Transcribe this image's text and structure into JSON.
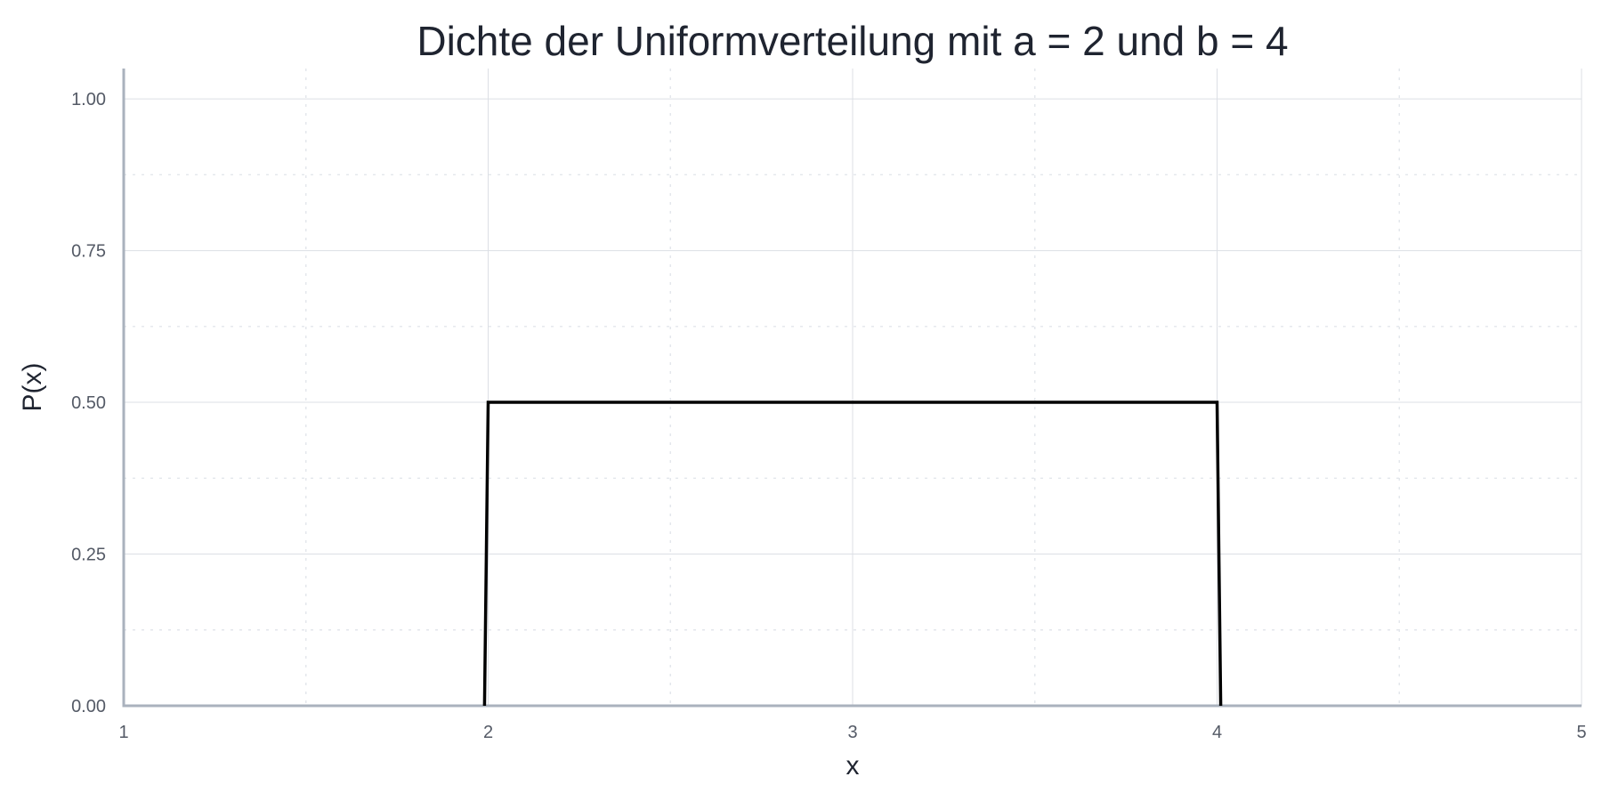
{
  "chart_data": {
    "type": "line",
    "title": "Dichte der Uniformverteilung mit a = 2 und b = 4",
    "xlabel": "x",
    "ylabel": "P(x)",
    "xlim": [
      1,
      5
    ],
    "ylim": [
      0,
      1.05
    ],
    "x_ticks": [
      1,
      2,
      3,
      4,
      5
    ],
    "x_tick_labels": [
      "1",
      "2",
      "3",
      "4",
      "5"
    ],
    "y_ticks": [
      0,
      0.25,
      0.5,
      0.75,
      1.0
    ],
    "y_tick_labels": [
      "0.00",
      "0.25",
      "0.50",
      "0.75",
      "1.00"
    ],
    "x_minor_ticks": [
      1.5,
      2.5,
      3.5,
      4.5
    ],
    "y_minor_ticks": [
      0.125,
      0.375,
      0.625,
      0.875
    ],
    "grid": true,
    "colors": {
      "line": "#000000",
      "axis": "#aab2bd"
    },
    "series": [
      {
        "x": [
          1.99,
          2.0,
          4.0,
          4.01
        ],
        "y": [
          0,
          0.5,
          0.5,
          0
        ]
      }
    ]
  }
}
